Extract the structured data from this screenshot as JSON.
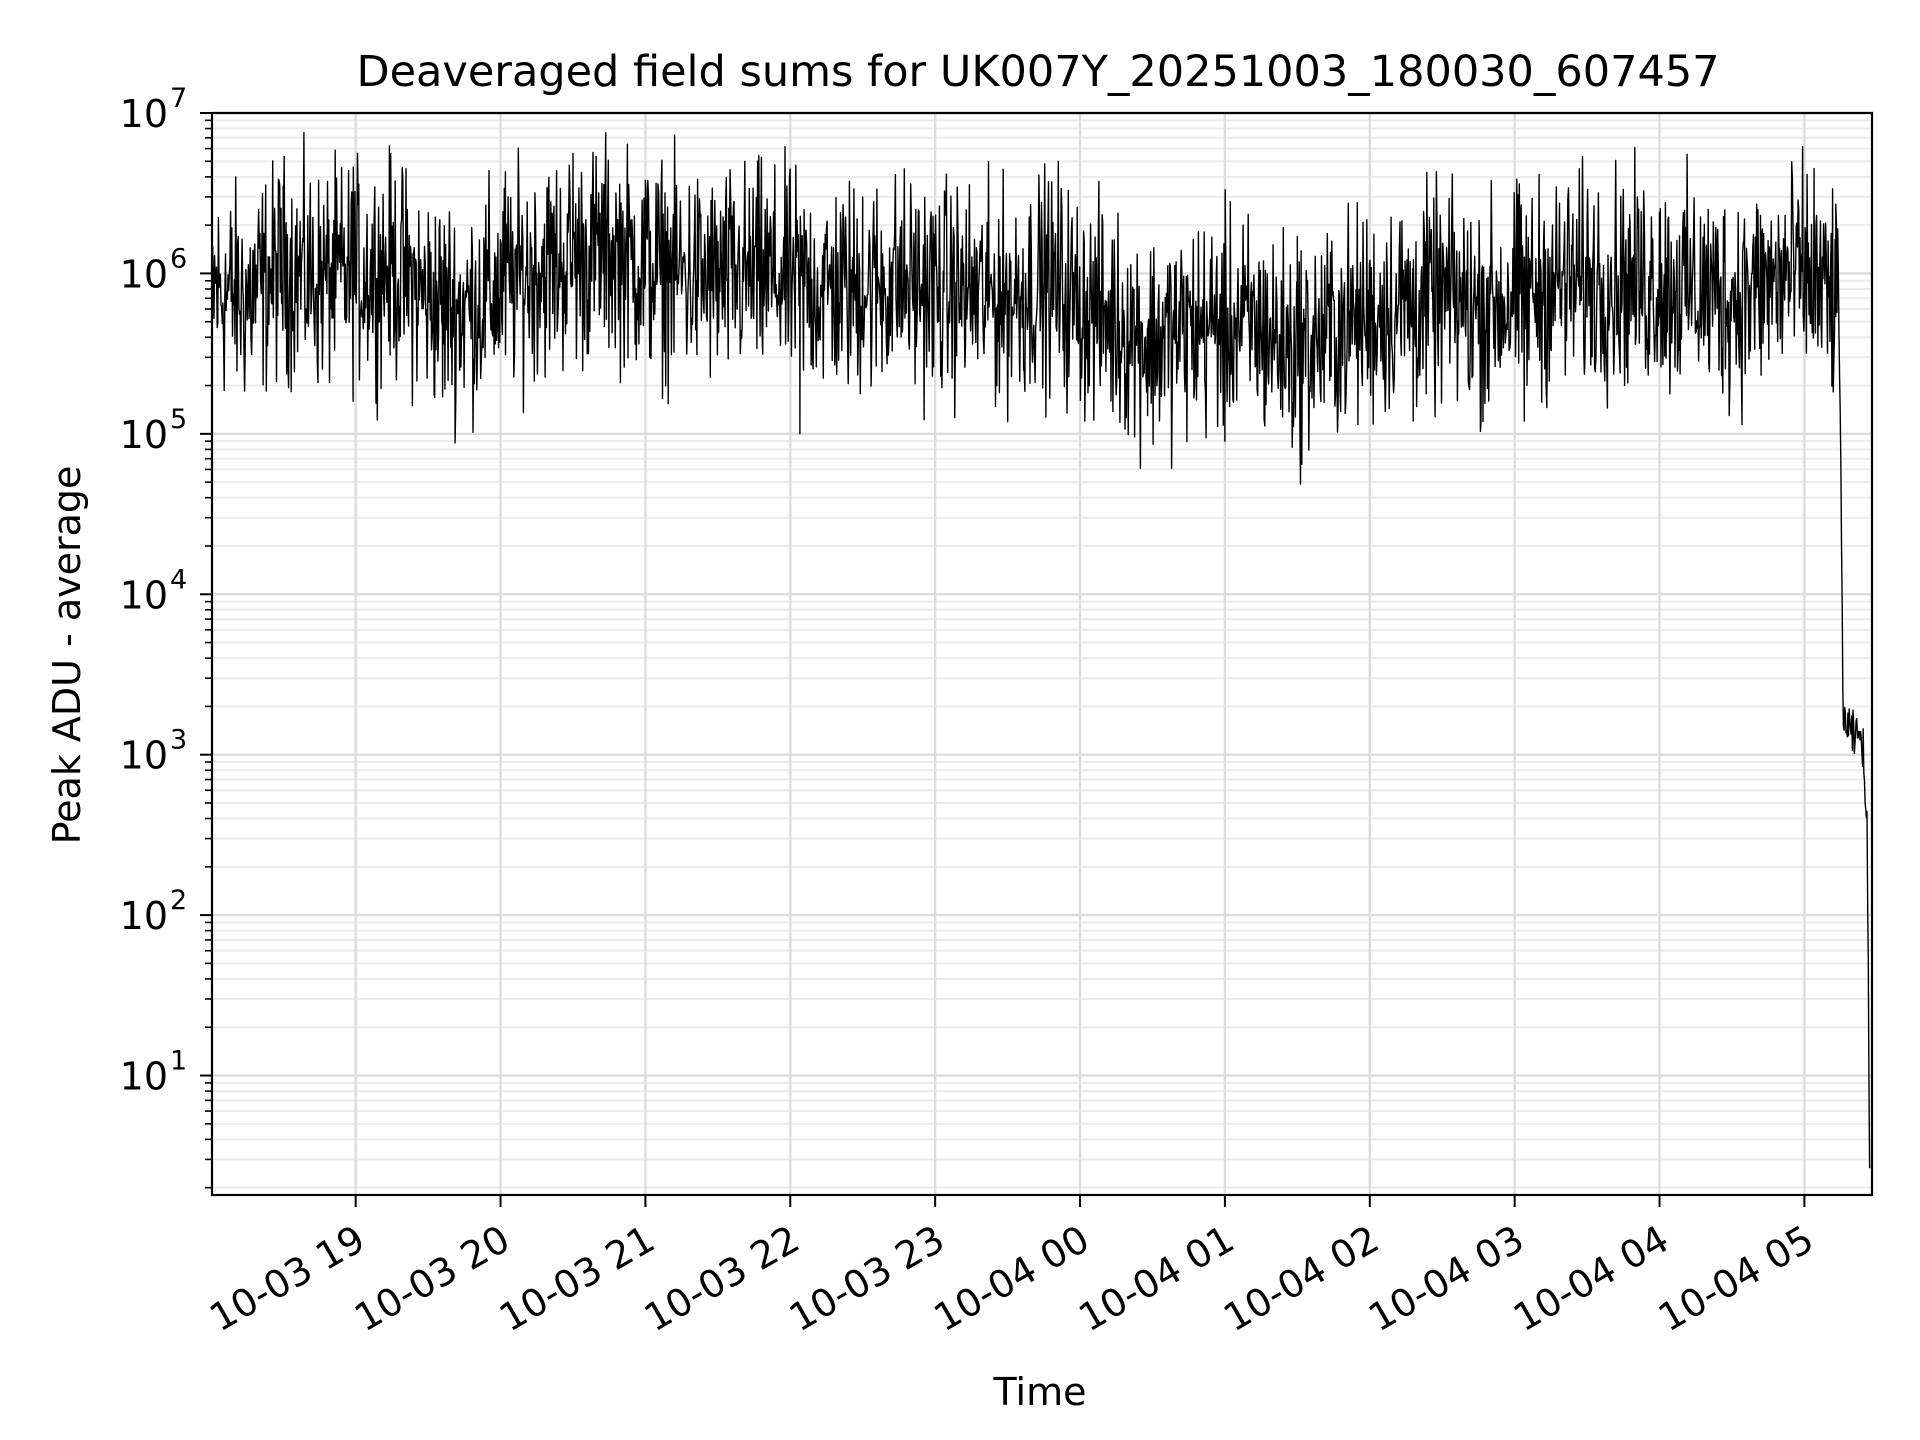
{
  "chart_data": {
    "type": "line",
    "title": "Deaveraged field sums for UK007Y_20251003_180030_607457",
    "xlabel": "Time",
    "ylabel": "Peak ADU - average",
    "yscale": "log",
    "ylim": [
      1.8,
      10000000
    ],
    "xlim": [
      "2025-10-03 18:00:30",
      "2025-10-04 05:28:00"
    ],
    "grid": "major and minor",
    "line_color": "#000000",
    "y_ticks": [
      {
        "base": "10",
        "exp": "1",
        "value": 10
      },
      {
        "base": "10",
        "exp": "2",
        "value": 100
      },
      {
        "base": "10",
        "exp": "3",
        "value": 1000
      },
      {
        "base": "10",
        "exp": "4",
        "value": 10000
      },
      {
        "base": "10",
        "exp": "5",
        "value": 100000
      },
      {
        "base": "10",
        "exp": "6",
        "value": 1000000
      },
      {
        "base": "10",
        "exp": "7",
        "value": 10000000
      }
    ],
    "x_ticks": [
      {
        "label": "10-03 19",
        "value": "2025-10-03 19:00"
      },
      {
        "label": "10-03 20",
        "value": "2025-10-03 20:00"
      },
      {
        "label": "10-03 21",
        "value": "2025-10-03 21:00"
      },
      {
        "label": "10-03 22",
        "value": "2025-10-03 22:00"
      },
      {
        "label": "10-03 23",
        "value": "2025-10-03 23:00"
      },
      {
        "label": "10-04 00",
        "value": "2025-10-04 00:00"
      },
      {
        "label": "10-04 01",
        "value": "2025-10-04 01:00"
      },
      {
        "label": "10-04 02",
        "value": "2025-10-04 02:00"
      },
      {
        "label": "10-04 03",
        "value": "2025-10-04 03:00"
      },
      {
        "label": "10-04 04",
        "value": "2025-10-04 04:00"
      },
      {
        "label": "10-04 05",
        "value": "2025-10-04 05:00"
      }
    ],
    "series": [
      {
        "points": [
          [
            "2025-10-03 18:00",
            800000
          ],
          [
            "2025-10-03 18:15",
            700000
          ],
          [
            "2025-10-03 18:30",
            1100000
          ],
          [
            "2025-10-03 18:45",
            900000
          ],
          [
            "2025-10-03 19:00",
            1000000
          ],
          [
            "2025-10-03 19:15",
            1100000
          ],
          [
            "2025-10-03 19:30",
            700000
          ],
          [
            "2025-10-03 19:45",
            600000
          ],
          [
            "2025-10-03 20:00",
            800000
          ],
          [
            "2025-10-03 20:15",
            1100000
          ],
          [
            "2025-10-03 20:30",
            1200000
          ],
          [
            "2025-10-03 20:45",
            1400000
          ],
          [
            "2025-10-03 21:00",
            1100000
          ],
          [
            "2025-10-03 21:15",
            1000000
          ],
          [
            "2025-10-03 21:30",
            900000
          ],
          [
            "2025-10-03 21:45",
            1000000
          ],
          [
            "2025-10-03 22:00",
            900000
          ],
          [
            "2025-10-03 22:15",
            800000
          ],
          [
            "2025-10-03 22:30",
            800000
          ],
          [
            "2025-10-03 22:45",
            900000
          ],
          [
            "2025-10-03 23:00",
            800000
          ],
          [
            "2025-10-03 23:15",
            750000
          ],
          [
            "2025-10-03 23:30",
            700000
          ],
          [
            "2025-10-03 23:45",
            900000
          ],
          [
            "2025-10-04 00:00",
            650000
          ],
          [
            "2025-10-04 00:15",
            500000
          ],
          [
            "2025-10-04 00:30",
            380000
          ],
          [
            "2025-10-04 00:45",
            450000
          ],
          [
            "2025-10-04 01:00",
            500000
          ],
          [
            "2025-10-04 01:15",
            450000
          ],
          [
            "2025-10-04 01:30",
            320000
          ],
          [
            "2025-10-04 01:45",
            450000
          ],
          [
            "2025-10-04 02:00",
            550000
          ],
          [
            "2025-10-04 02:15",
            650000
          ],
          [
            "2025-10-04 02:30",
            700000
          ],
          [
            "2025-10-04 02:45",
            600000
          ],
          [
            "2025-10-04 03:00",
            700000
          ],
          [
            "2025-10-04 03:15",
            850000
          ],
          [
            "2025-10-04 03:30",
            900000
          ],
          [
            "2025-10-04 03:45",
            900000
          ],
          [
            "2025-10-04 04:00",
            850000
          ],
          [
            "2025-10-04 04:15",
            800000
          ],
          [
            "2025-10-04 04:30",
            700000
          ],
          [
            "2025-10-04 04:45",
            850000
          ],
          [
            "2025-10-04 05:00",
            1000000
          ],
          [
            "2025-10-04 05:10",
            700000
          ],
          [
            "2025-10-04 05:14",
            800000
          ],
          [
            "2025-10-04 05:15",
            90000
          ],
          [
            "2025-10-04 05:16",
            2000
          ],
          [
            "2025-10-04 05:17",
            1500
          ],
          [
            "2025-10-04 05:20",
            1300
          ],
          [
            "2025-10-04 05:24",
            1300
          ],
          [
            "2025-10-04 05:26",
            300
          ],
          [
            "2025-10-04 05:27",
            3.8
          ]
        ],
        "spikes": [
          [
            "2025-10-03 18:30",
            3500000
          ],
          [
            "2025-10-03 18:59",
            4600000
          ],
          [
            "2025-10-03 19:36",
            170000
          ],
          [
            "2025-10-03 20:02",
            4300000
          ],
          [
            "2025-10-03 20:30",
            5600000
          ],
          [
            "2025-10-03 21:00",
            3800000
          ],
          [
            "2025-10-03 22:04",
            100000
          ],
          [
            "2025-10-03 22:30",
            3000000
          ],
          [
            "2025-10-03 23:51",
            5000000
          ],
          [
            "2025-10-04 00:28",
            130000
          ],
          [
            "2025-10-04 01:00",
            90000
          ],
          [
            "2025-10-04 01:30",
            1700000
          ],
          [
            "2025-10-04 02:18",
            120000
          ],
          [
            "2025-10-04 02:35",
            1800000
          ],
          [
            "2025-10-04 03:04",
            120000
          ],
          [
            "2025-10-04 03:30",
            2000000
          ],
          [
            "2025-10-04 04:00",
            2400000
          ],
          [
            "2025-10-04 04:52",
            2300000
          ],
          [
            "2025-10-04 05:04",
            4500000
          ],
          [
            "2025-10-04 05:13",
            2700000
          ]
        ],
        "noise_decades": 0.55
      }
    ]
  }
}
